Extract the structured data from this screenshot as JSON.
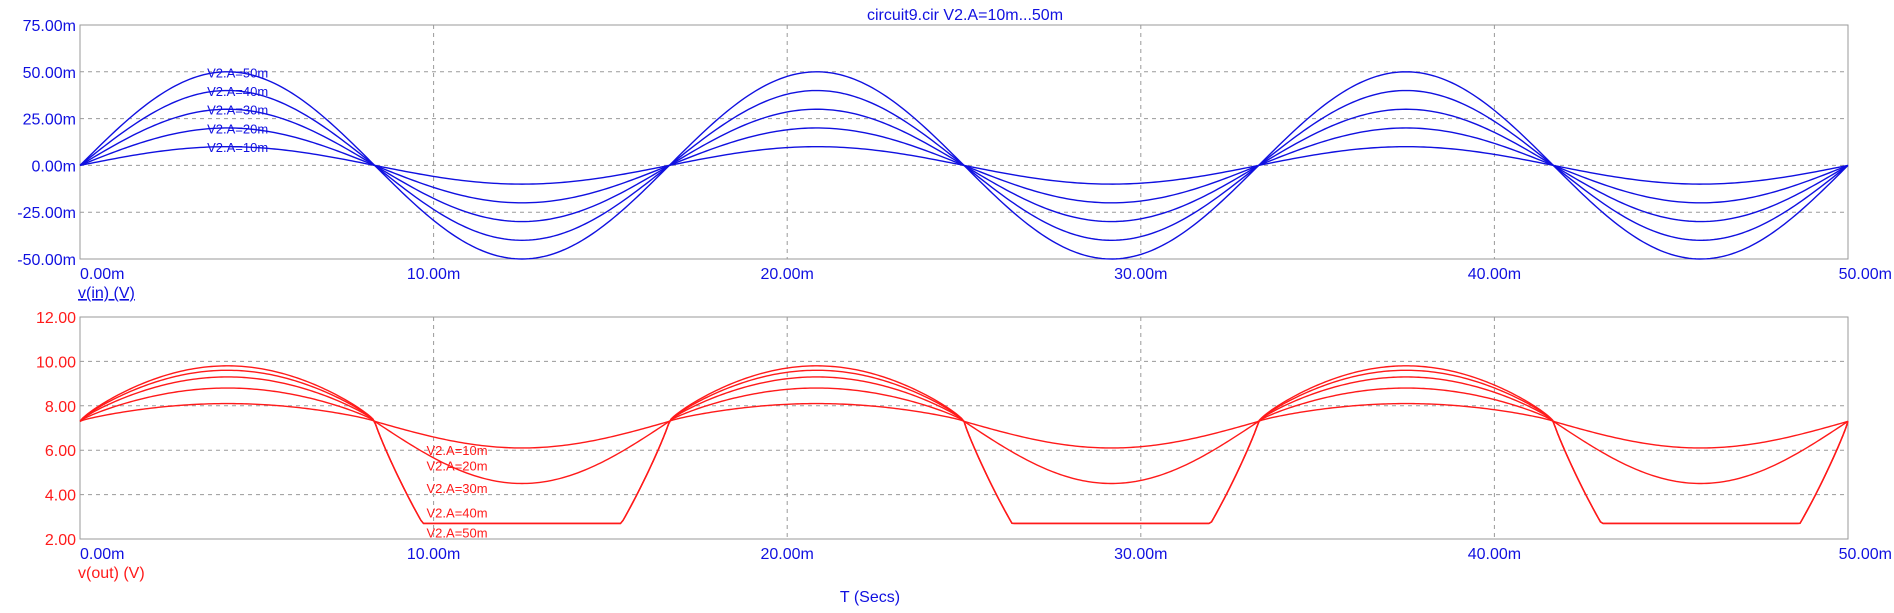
{
  "title": "circuit9.cir V2.A=10m...50m",
  "x_axis_label": "T (Secs)",
  "colors": {
    "input": "#1010e0",
    "output": "#ff1a1a",
    "grid": "#9a9a9a",
    "frame": "#9a9a9a"
  },
  "chart_data": [
    {
      "type": "line",
      "name": "input-panel",
      "ylabel": "v(in) (V)",
      "x_ticks": [
        "0.00m",
        "10.00m",
        "20.00m",
        "30.00m",
        "40.00m",
        "50.00m"
      ],
      "y_ticks": [
        "-50.00m",
        "-25.00m",
        "0.00m",
        "25.00m",
        "50.00m",
        "75.00m"
      ],
      "xlim": [
        0,
        50
      ],
      "ylim": [
        -50,
        75
      ],
      "x_unit": "ms",
      "y_unit": "mV",
      "grid": true,
      "frequency_hz": 60,
      "series": [
        {
          "name": "V2.A=10m",
          "amplitude_mV": 10
        },
        {
          "name": "V2.A=20m",
          "amplitude_mV": 20
        },
        {
          "name": "V2.A=30m",
          "amplitude_mV": 30
        },
        {
          "name": "V2.A=40m",
          "amplitude_mV": 40
        },
        {
          "name": "V2.A=50m",
          "amplitude_mV": 50
        }
      ]
    },
    {
      "type": "line",
      "name": "output-panel",
      "ylabel": "v(out) (V)",
      "x_ticks": [
        "0.00m",
        "10.00m",
        "20.00m",
        "30.00m",
        "40.00m",
        "50.00m"
      ],
      "y_ticks": [
        "2.00",
        "4.00",
        "6.00",
        "8.00",
        "10.00",
        "12.00"
      ],
      "xlim": [
        0,
        50
      ],
      "ylim": [
        2,
        12
      ],
      "x_unit": "ms",
      "y_unit": "V",
      "grid": true,
      "bias_V": 7.3,
      "clip_low_V": 2.7,
      "series": [
        {
          "name": "V2.A=10m",
          "peak_V": 8.1,
          "trough_V": 6.1
        },
        {
          "name": "V2.A=20m",
          "peak_V": 8.8,
          "trough_V": 4.5
        },
        {
          "name": "V2.A=30m",
          "peak_V": 9.3,
          "trough_V": 2.7
        },
        {
          "name": "V2.A=40m",
          "peak_V": 9.6,
          "trough_V": 2.7
        },
        {
          "name": "V2.A=50m",
          "peak_V": 9.8,
          "trough_V": 2.7
        }
      ]
    }
  ]
}
